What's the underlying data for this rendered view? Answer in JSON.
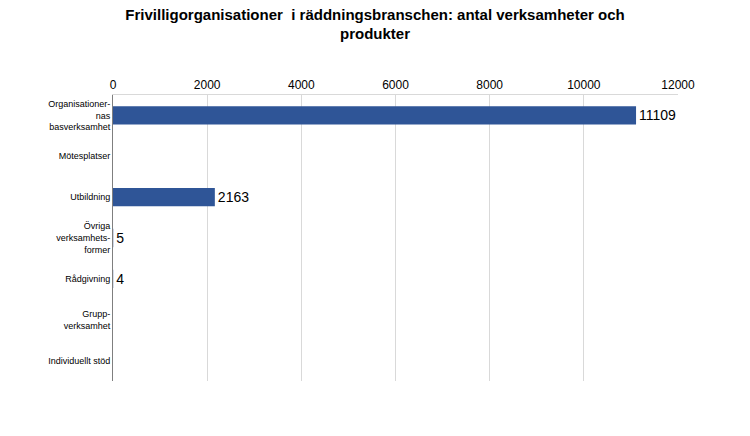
{
  "chart_data": {
    "type": "bar",
    "orientation": "horizontal",
    "title": "Frivilligorganisationer  i räddningsbranschen: antal verksamheter och\nprodukter",
    "categories": [
      "Organisationer-\nnas\nbasverksamhet",
      "Mötesplatser",
      "Utbildning",
      "Övriga\nverksamhets-\nformer",
      "Rådgivning",
      "Grupp-\nverksamhet",
      "Individuellt stöd"
    ],
    "values": [
      11109,
      null,
      2163,
      5,
      4,
      null,
      null
    ],
    "color": "#2f5597",
    "xlim": [
      0,
      12000
    ],
    "xticks": [
      0,
      2000,
      4000,
      6000,
      8000,
      10000,
      12000
    ],
    "grid": true,
    "data_labels": true
  }
}
